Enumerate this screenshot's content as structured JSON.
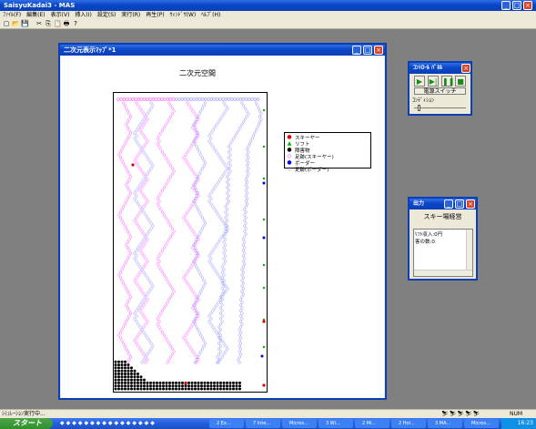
{
  "app": {
    "title": "SaisyuKadai3 - MAS",
    "menu": [
      "ﾌｧｲﾙ(F)",
      "編集(E)",
      "表示(V)",
      "挿入(I)",
      "設定(S)",
      "実行(R)",
      "再生(P)",
      "ｳｨﾝﾄﾞｳ(W)",
      "ﾍﾙﾌﾟ(H)"
    ],
    "toolbar_icons": [
      "new-icon",
      "open-icon",
      "save-icon",
      "cut-icon",
      "copy-icon",
      "paste-icon",
      "print-icon",
      "help-icon"
    ],
    "toolbar_glyphs": [
      "▢",
      "📂",
      "💾",
      "✂",
      "⎘",
      "📋",
      "🖶",
      "?"
    ]
  },
  "view2d": {
    "title": "二次元表示ﾏｯﾌﾟ*1",
    "heading": "二次元空間"
  },
  "legend": [
    {
      "label": "スキーヤー",
      "color": "#e00000",
      "shape": "●"
    },
    {
      "label": "リフト",
      "color": "#00b000",
      "shape": "▲"
    },
    {
      "label": "障害物",
      "color": "#000000",
      "shape": "●"
    },
    {
      "label": "足跡(スキーヤー)",
      "color": "#ff00ff",
      "shape": "◇"
    },
    {
      "label": "ボーダー",
      "color": "#0000e0",
      "shape": "●"
    },
    {
      "label": "足跡(ボーダー)",
      "color": "#8080ff",
      "shape": "◇"
    }
  ],
  "control_panel": {
    "title": "ｺﾝﾄﾛｰﾙ ﾊﾟﾈﾙ",
    "buttons": [
      {
        "name": "play-button",
        "glyph": "▶"
      },
      {
        "name": "step-button",
        "glyph": "▶|"
      },
      {
        "name": "pause-button",
        "glyph": "❚❚"
      },
      {
        "name": "stop-button",
        "glyph": "■"
      }
    ],
    "power_label": "電源スイッチ",
    "condition_label": "ｺﾝﾃﾞｨｼｮﾝ"
  },
  "output": {
    "title": "出力",
    "heading": "スキー場経営",
    "lines": [
      "ﾘﾌﾄ収入:0円",
      "客の数:0"
    ]
  },
  "status": {
    "text": "ｼﾐｭﾚｰｼｮﾝ実行中...",
    "num": "NUM"
  },
  "taskbar": {
    "start": "スタート",
    "tasks": [
      "2 Ex...",
      "7 Inte...",
      "Micros...",
      "3 Wi...",
      "2 Mi...",
      "2 Hol...",
      "3 MA...",
      "Micros..."
    ],
    "clock": "16:23"
  }
}
